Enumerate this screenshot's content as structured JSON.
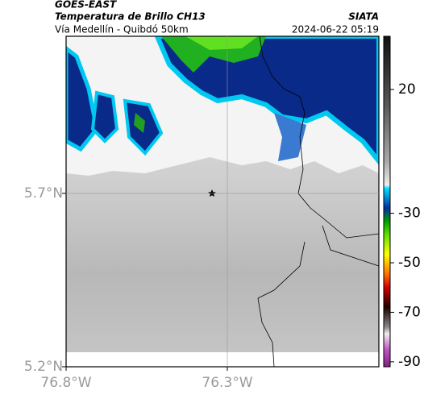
{
  "header": {
    "satellite": "GOES-EAST",
    "product": "Temperatura de Brillo CH13",
    "location": "Vía Medellín - Quibdó 50km",
    "source": "SIATA",
    "datetime": "2024-06-22 05:19"
  },
  "map": {
    "xlim": [
      -76.8,
      -75.83
    ],
    "ylim": [
      5.2,
      6.153
    ],
    "xticks": [
      {
        "value": -76.8,
        "label": "76.8°W"
      },
      {
        "value": -76.3,
        "label": "76.3°W"
      }
    ],
    "yticks": [
      {
        "value": 5.7,
        "label": "5.7°N"
      },
      {
        "value": 5.2,
        "label": "5.2°N"
      }
    ]
  },
  "colorbar": {
    "range": [
      -92,
      41.5
    ],
    "ticks": [
      20,
      -30,
      -50,
      -70,
      -90
    ]
  }
}
